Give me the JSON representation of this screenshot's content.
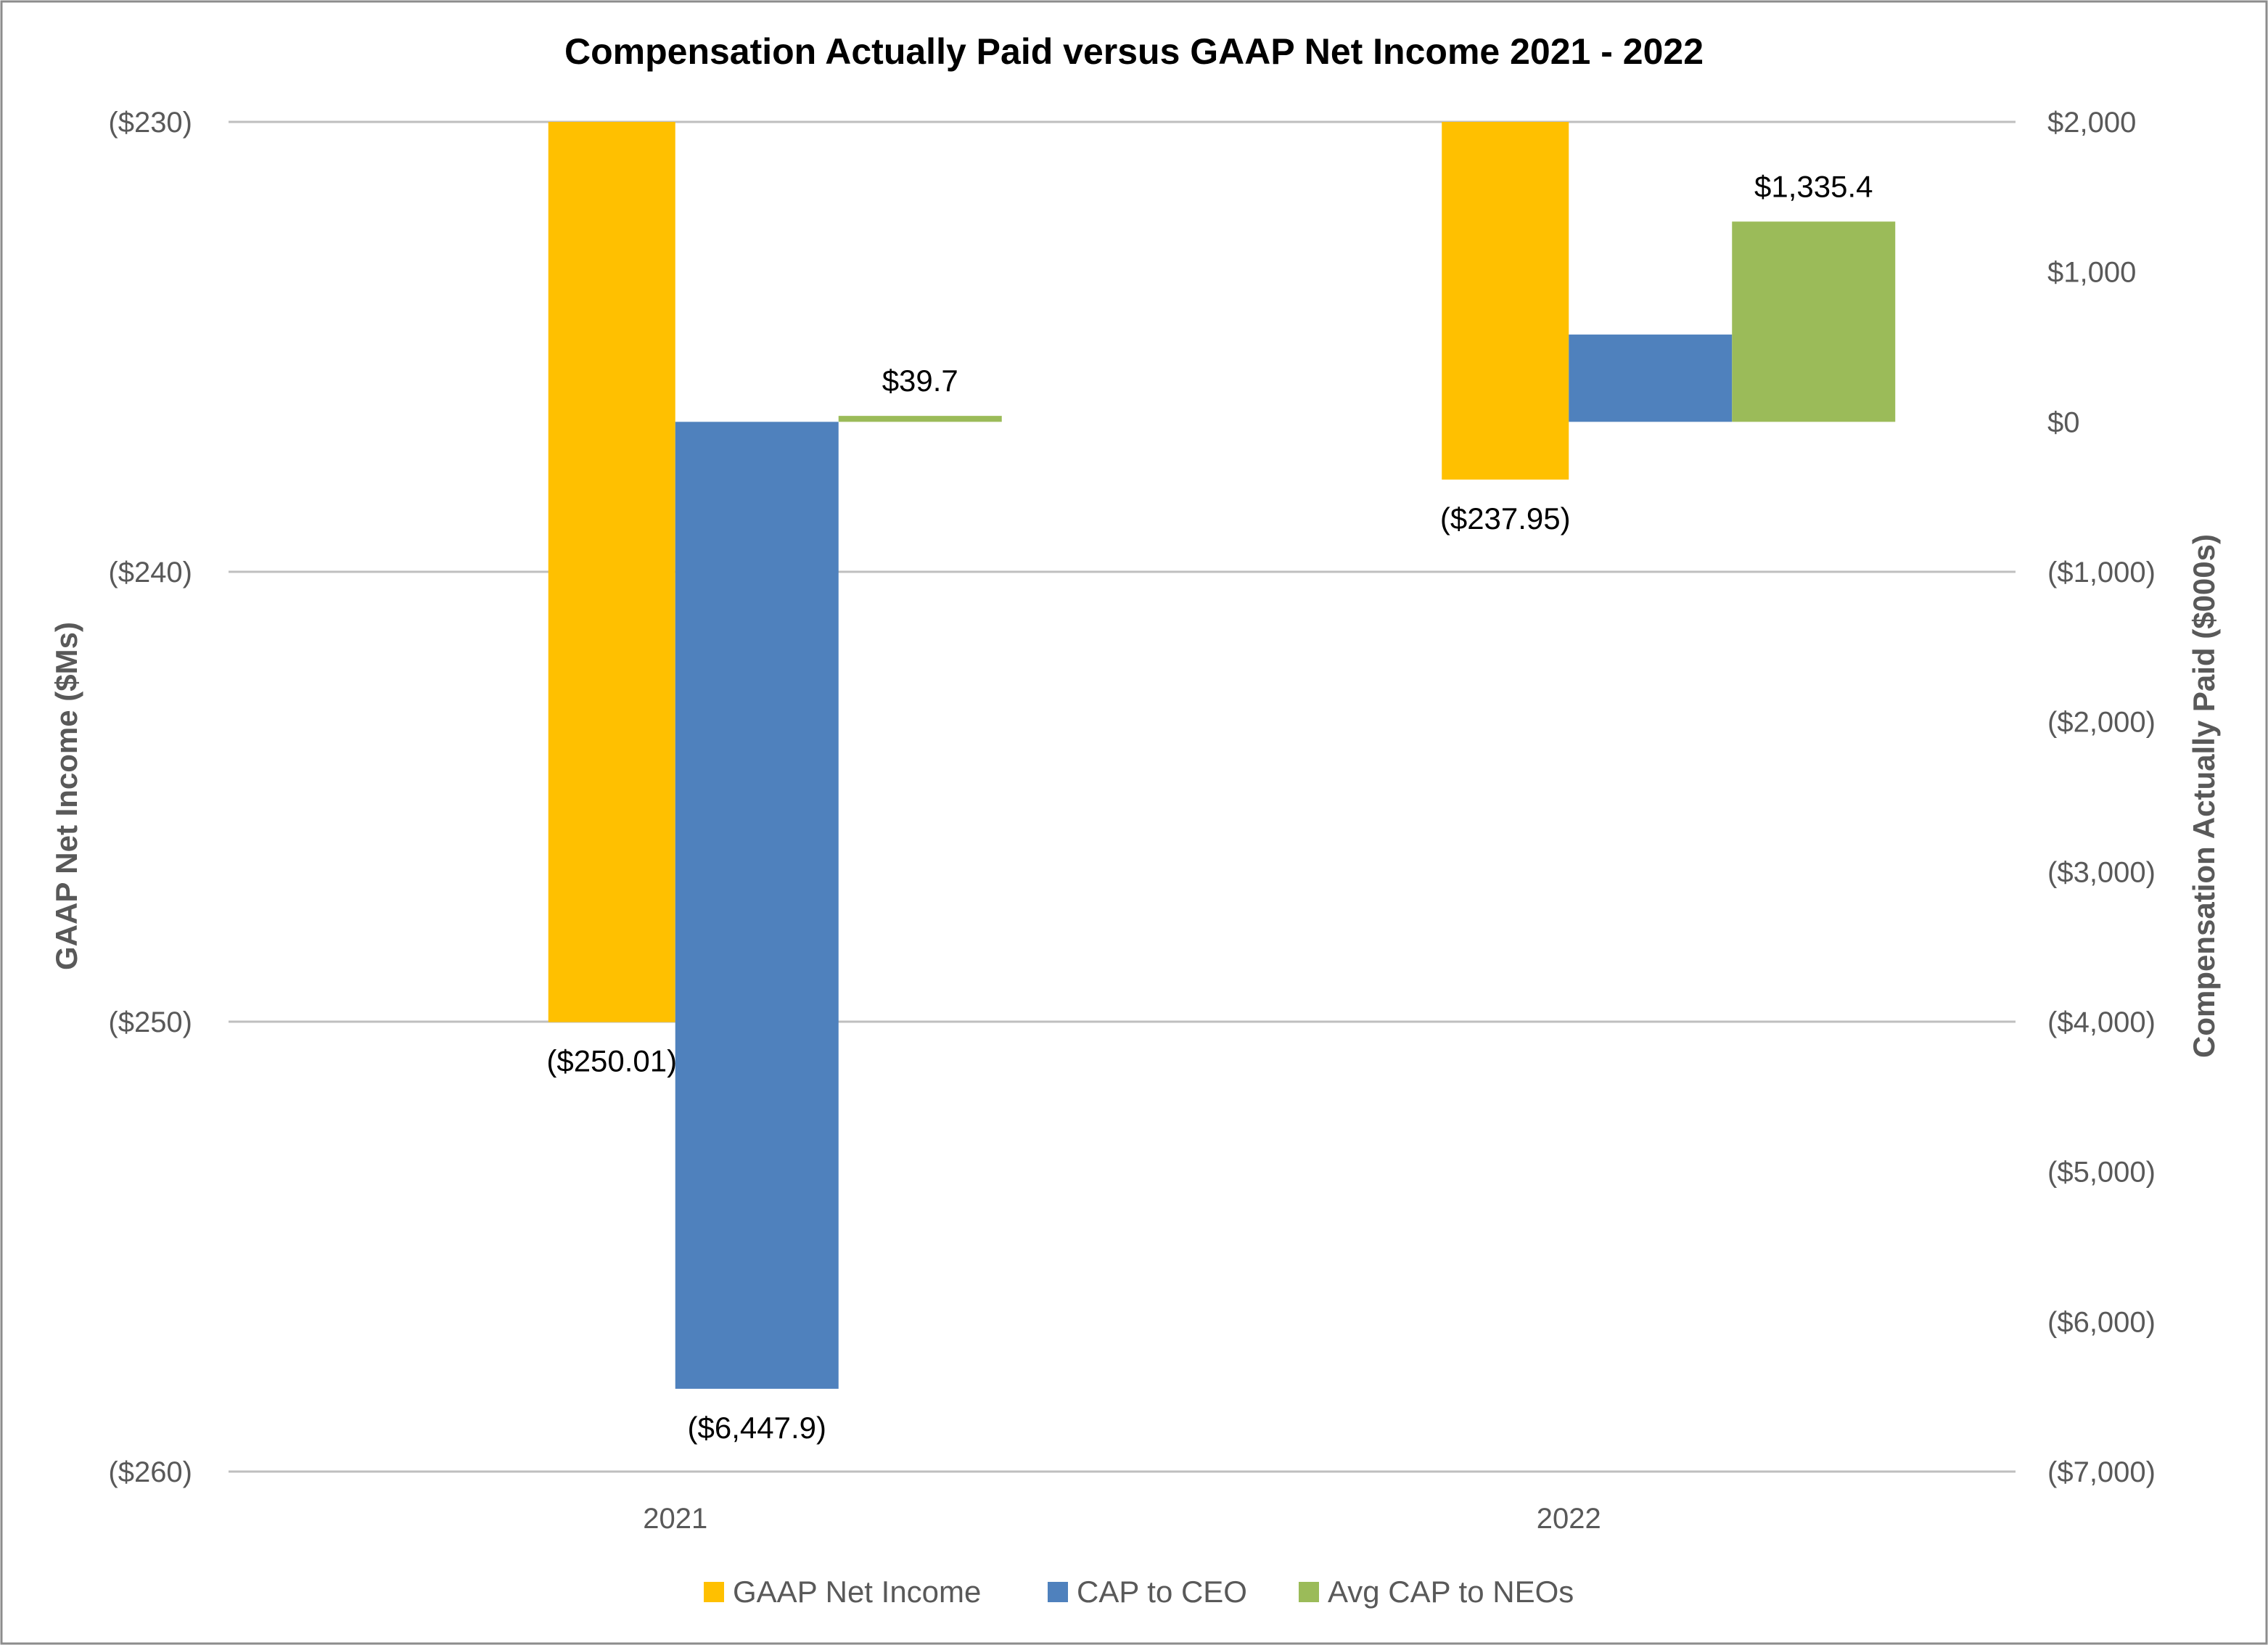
{
  "chart_data": {
    "type": "bar",
    "title": "Compensation Actually Paid versus GAAP Net Income 2021 - 2022",
    "categories": [
      "2021",
      "2022"
    ],
    "ylabel_left": "GAAP Net Income ($Ms)",
    "ylabel_right": "Compensation Actually Paid ($000s)",
    "ylim_left": [
      -260,
      -230
    ],
    "ylim_right": [
      -7000,
      2000
    ],
    "yticks_left": [
      "($230)",
      "($240)",
      "($250)",
      "($260)"
    ],
    "yticks_left_values": [
      -230,
      -240,
      -250,
      -260
    ],
    "yticks_right": [
      "$2,000",
      "$1,000",
      "$0",
      "($1,000)",
      "($2,000)",
      "($3,000)",
      "($4,000)",
      "($5,000)",
      "($6,000)",
      "($7,000)"
    ],
    "yticks_right_values": [
      2000,
      1000,
      0,
      -1000,
      -2000,
      -3000,
      -4000,
      -5000,
      -6000,
      -7000
    ],
    "grid": true,
    "legend_position": "bottom",
    "series": [
      {
        "name": "GAAP Net Income",
        "axis": "left",
        "color": "#FFC000",
        "values": [
          -250.01,
          -237.95
        ],
        "labels": [
          "($250.01)",
          "($237.95)"
        ]
      },
      {
        "name": "CAP to CEO",
        "axis": "right",
        "color": "#4F81BD",
        "values": [
          -6447.9,
          582
        ],
        "labels": [
          "($6,447.9)",
          ""
        ]
      },
      {
        "name": "Avg CAP to NEOs",
        "axis": "right",
        "color": "#9BBB59",
        "values": [
          39.7,
          1335.4
        ],
        "labels": [
          "$39.7",
          "$1,335.4"
        ]
      }
    ]
  }
}
